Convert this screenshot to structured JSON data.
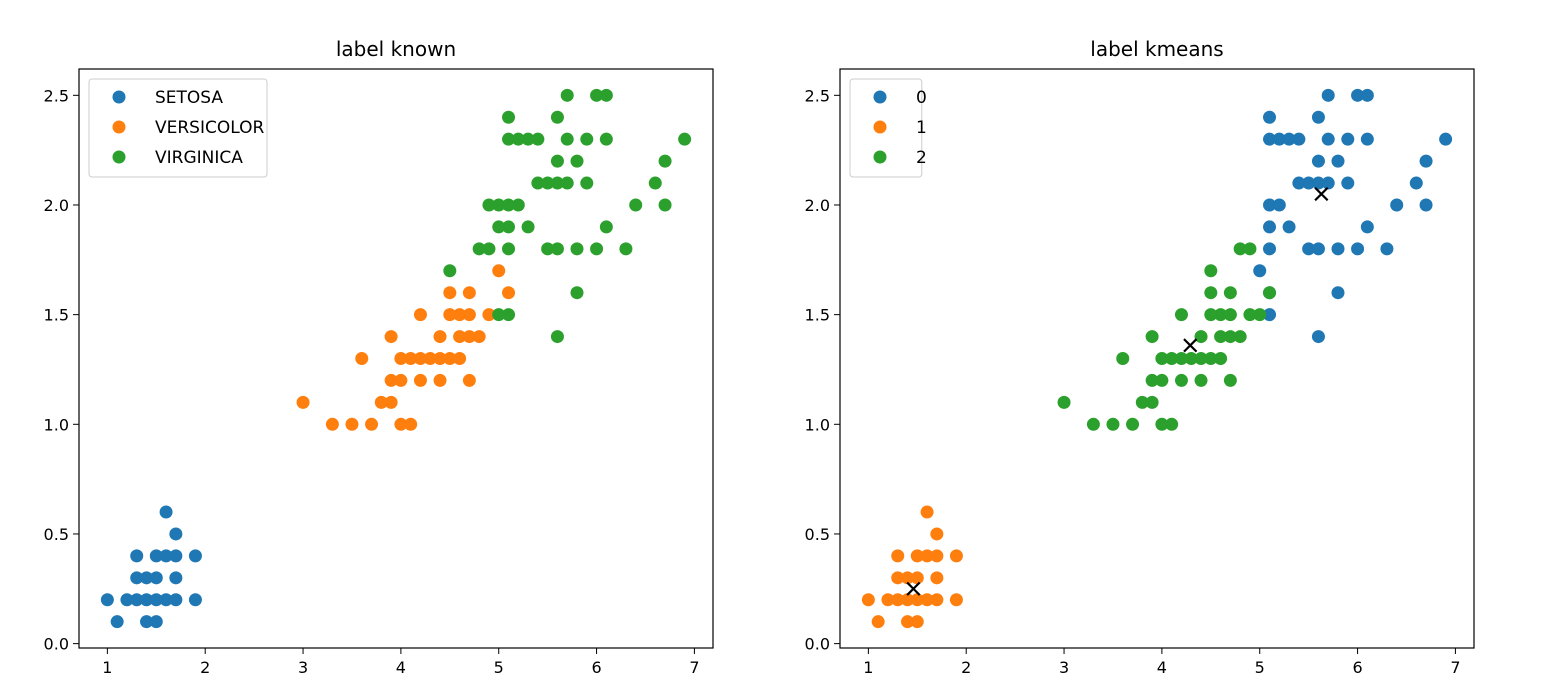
{
  "chart_data": [
    {
      "type": "scatter",
      "title": "label known",
      "xlabel": "",
      "ylabel": "",
      "xlim": [
        0.71,
        7.19
      ],
      "ylim": [
        -0.02,
        2.62
      ],
      "xticks": [
        1,
        2,
        3,
        4,
        5,
        6,
        7
      ],
      "yticks": [
        0.0,
        0.5,
        1.0,
        1.5,
        2.0,
        2.5
      ],
      "xtick_labels": [
        "1",
        "2",
        "3",
        "4",
        "5",
        "6",
        "7"
      ],
      "ytick_labels": [
        "0.0",
        "0.5",
        "1.0",
        "1.5",
        "2.0",
        "2.5"
      ],
      "grid": false,
      "legend": "top-left",
      "series": [
        {
          "name": "SETOSA",
          "color": "#1f77b4",
          "points": [
            [
              1.0,
              0.2
            ],
            [
              1.1,
              0.1
            ],
            [
              1.2,
              0.2
            ],
            [
              1.3,
              0.2
            ],
            [
              1.3,
              0.3
            ],
            [
              1.3,
              0.4
            ],
            [
              1.4,
              0.2
            ],
            [
              1.4,
              0.3
            ],
            [
              1.4,
              0.1
            ],
            [
              1.5,
              0.2
            ],
            [
              1.5,
              0.4
            ],
            [
              1.5,
              0.1
            ],
            [
              1.5,
              0.3
            ],
            [
              1.6,
              0.2
            ],
            [
              1.6,
              0.4
            ],
            [
              1.6,
              0.6
            ],
            [
              1.7,
              0.2
            ],
            [
              1.7,
              0.3
            ],
            [
              1.7,
              0.4
            ],
            [
              1.7,
              0.5
            ],
            [
              1.9,
              0.2
            ],
            [
              1.9,
              0.4
            ]
          ]
        },
        {
          "name": "VERSICOLOR",
          "color": "#ff7f0e",
          "points": [
            [
              3.0,
              1.1
            ],
            [
              3.3,
              1.0
            ],
            [
              3.5,
              1.0
            ],
            [
              3.6,
              1.3
            ],
            [
              3.7,
              1.0
            ],
            [
              3.8,
              1.1
            ],
            [
              3.9,
              1.1
            ],
            [
              3.9,
              1.2
            ],
            [
              3.9,
              1.4
            ],
            [
              4.0,
              1.0
            ],
            [
              4.0,
              1.2
            ],
            [
              4.0,
              1.3
            ],
            [
              4.1,
              1.0
            ],
            [
              4.1,
              1.3
            ],
            [
              4.2,
              1.2
            ],
            [
              4.2,
              1.3
            ],
            [
              4.2,
              1.5
            ],
            [
              4.3,
              1.3
            ],
            [
              4.4,
              1.2
            ],
            [
              4.4,
              1.3
            ],
            [
              4.4,
              1.4
            ],
            [
              4.5,
              1.3
            ],
            [
              4.5,
              1.5
            ],
            [
              4.5,
              1.6
            ],
            [
              4.6,
              1.3
            ],
            [
              4.6,
              1.4
            ],
            [
              4.6,
              1.5
            ],
            [
              4.7,
              1.2
            ],
            [
              4.7,
              1.4
            ],
            [
              4.7,
              1.5
            ],
            [
              4.7,
              1.6
            ],
            [
              4.8,
              1.4
            ],
            [
              4.9,
              1.5
            ],
            [
              5.0,
              1.7
            ],
            [
              5.1,
              1.6
            ]
          ]
        },
        {
          "name": "VIRGINICA",
          "color": "#2ca02c",
          "points": [
            [
              4.5,
              1.7
            ],
            [
              4.8,
              1.8
            ],
            [
              4.9,
              1.8
            ],
            [
              4.9,
              2.0
            ],
            [
              5.0,
              1.5
            ],
            [
              5.0,
              1.9
            ],
            [
              5.0,
              2.0
            ],
            [
              5.1,
              1.5
            ],
            [
              5.1,
              1.8
            ],
            [
              5.1,
              1.9
            ],
            [
              5.1,
              2.0
            ],
            [
              5.1,
              2.3
            ],
            [
              5.1,
              2.4
            ],
            [
              5.2,
              2.0
            ],
            [
              5.2,
              2.3
            ],
            [
              5.3,
              1.9
            ],
            [
              5.3,
              2.3
            ],
            [
              5.4,
              2.1
            ],
            [
              5.4,
              2.3
            ],
            [
              5.5,
              1.8
            ],
            [
              5.5,
              2.1
            ],
            [
              5.6,
              1.4
            ],
            [
              5.6,
              1.8
            ],
            [
              5.6,
              2.1
            ],
            [
              5.6,
              2.2
            ],
            [
              5.6,
              2.4
            ],
            [
              5.7,
              2.1
            ],
            [
              5.7,
              2.3
            ],
            [
              5.7,
              2.5
            ],
            [
              5.8,
              1.6
            ],
            [
              5.8,
              1.8
            ],
            [
              5.8,
              2.2
            ],
            [
              5.9,
              2.1
            ],
            [
              5.9,
              2.3
            ],
            [
              6.0,
              1.8
            ],
            [
              6.0,
              2.5
            ],
            [
              6.1,
              1.9
            ],
            [
              6.1,
              2.3
            ],
            [
              6.1,
              2.5
            ],
            [
              6.3,
              1.8
            ],
            [
              6.4,
              2.0
            ],
            [
              6.6,
              2.1
            ],
            [
              6.7,
              2.0
            ],
            [
              6.7,
              2.2
            ],
            [
              6.9,
              2.3
            ]
          ]
        }
      ]
    },
    {
      "type": "scatter",
      "title": "label kmeans",
      "xlabel": "",
      "ylabel": "",
      "xlim": [
        0.71,
        7.19
      ],
      "ylim": [
        -0.02,
        2.62
      ],
      "xticks": [
        1,
        2,
        3,
        4,
        5,
        6,
        7
      ],
      "yticks": [
        0.0,
        0.5,
        1.0,
        1.5,
        2.0,
        2.5
      ],
      "xtick_labels": [
        "1",
        "2",
        "3",
        "4",
        "5",
        "6",
        "7"
      ],
      "ytick_labels": [
        "0.0",
        "0.5",
        "1.0",
        "1.5",
        "2.0",
        "2.5"
      ],
      "grid": false,
      "legend": "top-left",
      "series": [
        {
          "name": "0",
          "color": "#1f77b4",
          "points": [
            [
              5.0,
              1.7
            ],
            [
              5.1,
              1.5
            ],
            [
              5.1,
              1.6
            ],
            [
              5.1,
              1.8
            ],
            [
              5.1,
              1.9
            ],
            [
              5.1,
              2.0
            ],
            [
              5.1,
              2.3
            ],
            [
              5.1,
              2.4
            ],
            [
              5.2,
              2.0
            ],
            [
              5.2,
              2.3
            ],
            [
              5.3,
              1.9
            ],
            [
              5.3,
              2.3
            ],
            [
              5.4,
              2.1
            ],
            [
              5.4,
              2.3
            ],
            [
              5.5,
              1.8
            ],
            [
              5.5,
              2.1
            ],
            [
              5.6,
              1.4
            ],
            [
              5.6,
              1.8
            ],
            [
              5.6,
              2.1
            ],
            [
              5.6,
              2.2
            ],
            [
              5.6,
              2.4
            ],
            [
              5.7,
              2.1
            ],
            [
              5.7,
              2.3
            ],
            [
              5.7,
              2.5
            ],
            [
              5.8,
              1.6
            ],
            [
              5.8,
              1.8
            ],
            [
              5.8,
              2.2
            ],
            [
              5.9,
              2.1
            ],
            [
              5.9,
              2.3
            ],
            [
              6.0,
              1.8
            ],
            [
              6.0,
              2.5
            ],
            [
              6.1,
              1.9
            ],
            [
              6.1,
              2.3
            ],
            [
              6.1,
              2.5
            ],
            [
              6.3,
              1.8
            ],
            [
              6.4,
              2.0
            ],
            [
              6.6,
              2.1
            ],
            [
              6.7,
              2.0
            ],
            [
              6.7,
              2.2
            ],
            [
              6.9,
              2.3
            ]
          ]
        },
        {
          "name": "1",
          "color": "#ff7f0e",
          "points": [
            [
              1.0,
              0.2
            ],
            [
              1.1,
              0.1
            ],
            [
              1.2,
              0.2
            ],
            [
              1.3,
              0.2
            ],
            [
              1.3,
              0.3
            ],
            [
              1.3,
              0.4
            ],
            [
              1.4,
              0.2
            ],
            [
              1.4,
              0.3
            ],
            [
              1.4,
              0.1
            ],
            [
              1.5,
              0.2
            ],
            [
              1.5,
              0.4
            ],
            [
              1.5,
              0.1
            ],
            [
              1.5,
              0.3
            ],
            [
              1.6,
              0.2
            ],
            [
              1.6,
              0.4
            ],
            [
              1.6,
              0.6
            ],
            [
              1.7,
              0.2
            ],
            [
              1.7,
              0.3
            ],
            [
              1.7,
              0.4
            ],
            [
              1.7,
              0.5
            ],
            [
              1.9,
              0.2
            ],
            [
              1.9,
              0.4
            ]
          ]
        },
        {
          "name": "2",
          "color": "#2ca02c",
          "points": [
            [
              3.0,
              1.1
            ],
            [
              3.3,
              1.0
            ],
            [
              3.5,
              1.0
            ],
            [
              3.6,
              1.3
            ],
            [
              3.7,
              1.0
            ],
            [
              3.8,
              1.1
            ],
            [
              3.9,
              1.1
            ],
            [
              3.9,
              1.2
            ],
            [
              3.9,
              1.4
            ],
            [
              4.0,
              1.0
            ],
            [
              4.0,
              1.2
            ],
            [
              4.0,
              1.3
            ],
            [
              4.1,
              1.0
            ],
            [
              4.1,
              1.3
            ],
            [
              4.2,
              1.2
            ],
            [
              4.2,
              1.3
            ],
            [
              4.2,
              1.5
            ],
            [
              4.3,
              1.3
            ],
            [
              4.4,
              1.2
            ],
            [
              4.4,
              1.3
            ],
            [
              4.4,
              1.4
            ],
            [
              4.5,
              1.3
            ],
            [
              4.5,
              1.5
            ],
            [
              4.5,
              1.6
            ],
            [
              4.5,
              1.7
            ],
            [
              4.6,
              1.3
            ],
            [
              4.6,
              1.4
            ],
            [
              4.6,
              1.5
            ],
            [
              4.7,
              1.2
            ],
            [
              4.7,
              1.4
            ],
            [
              4.7,
              1.5
            ],
            [
              4.7,
              1.6
            ],
            [
              4.8,
              1.4
            ],
            [
              4.8,
              1.8
            ],
            [
              4.9,
              1.5
            ],
            [
              4.9,
              1.8
            ],
            [
              5.0,
              1.5
            ],
            [
              5.1,
              1.6
            ]
          ]
        }
      ],
      "centroids": {
        "marker": "x",
        "color": "#000000",
        "points": [
          [
            5.63,
            2.05
          ],
          [
            1.46,
            0.25
          ],
          [
            4.29,
            1.36
          ]
        ]
      }
    }
  ]
}
